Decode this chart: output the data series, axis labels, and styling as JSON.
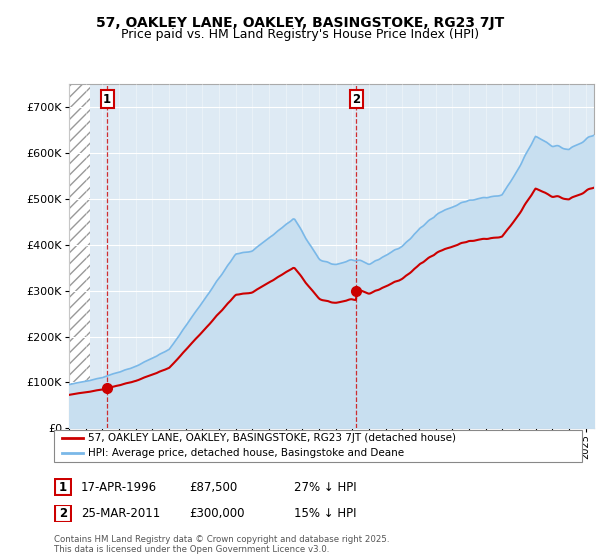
{
  "title": "57, OAKLEY LANE, OAKLEY, BASINGSTOKE, RG23 7JT",
  "subtitle": "Price paid vs. HM Land Registry's House Price Index (HPI)",
  "legend_line1": "57, OAKLEY LANE, OAKLEY, BASINGSTOKE, RG23 7JT (detached house)",
  "legend_line2": "HPI: Average price, detached house, Basingstoke and Deane",
  "sale1_date": "17-APR-1996",
  "sale1_price": 87500,
  "sale1_label": "27% ↓ HPI",
  "sale2_date": "25-MAR-2011",
  "sale2_price": 300000,
  "sale2_label": "15% ↓ HPI",
  "copyright": "Contains HM Land Registry data © Crown copyright and database right 2025.\nThis data is licensed under the Open Government Licence v3.0.",
  "hpi_color": "#7ab8e8",
  "hpi_fill_color": "#c8dff0",
  "price_color": "#cc0000",
  "bg_color": "#deeaf4",
  "hatch_bg": "#e8e8e8",
  "ylim_max": 750000,
  "xlim_min": 1994.0,
  "xlim_max": 2025.5,
  "sale1_x": 1996.29,
  "sale2_x": 2011.23,
  "title_fontsize": 10,
  "subtitle_fontsize": 9
}
